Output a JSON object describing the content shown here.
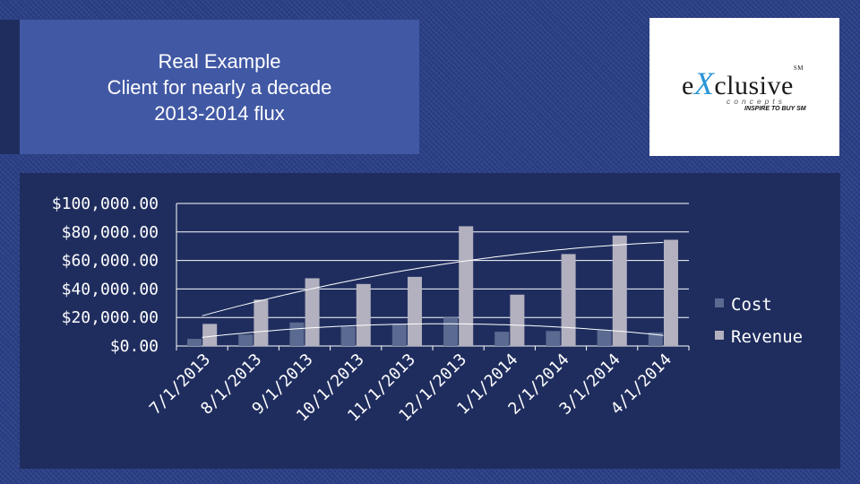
{
  "slide": {
    "title_lines": [
      "Real Example",
      "Client for nearly a decade",
      "2013-2014 flux"
    ]
  },
  "logo": {
    "word_start": "e",
    "word_x": "X",
    "word_end": "clusive",
    "mark": "SM",
    "subtitle": "concepts",
    "tagline": "INSPIRE TO BUY",
    "tag_mark": "SM",
    "accent_color": "#2a95d6"
  },
  "chart_data": {
    "type": "bar",
    "title": "",
    "xlabel": "",
    "ylabel": "",
    "categories": [
      "7/1/2013",
      "8/1/2013",
      "9/1/2013",
      "10/1/2013",
      "11/1/2013",
      "12/1/2013",
      "1/1/2014",
      "2/1/2014",
      "3/1/2014",
      "4/1/2014"
    ],
    "series": [
      {
        "name": "Cost",
        "color": "#5b6a91",
        "values": [
          5000,
          8000,
          16500,
          13500,
          15500,
          20000,
          10000,
          10500,
          11000,
          9500
        ]
      },
      {
        "name": "Revenue",
        "color": "#b3b1bf",
        "values": [
          15500,
          32500,
          47500,
          43500,
          48500,
          84000,
          36000,
          64500,
          77500,
          74500
        ]
      }
    ],
    "ylim": [
      0,
      100000
    ],
    "yticks": [
      "$0.00",
      "$20,000.00",
      "$40,000.00",
      "$60,000.00",
      "$80,000.00",
      "$100,000.00"
    ],
    "gridlines": true,
    "trendlines": true,
    "legend_position": "right"
  }
}
